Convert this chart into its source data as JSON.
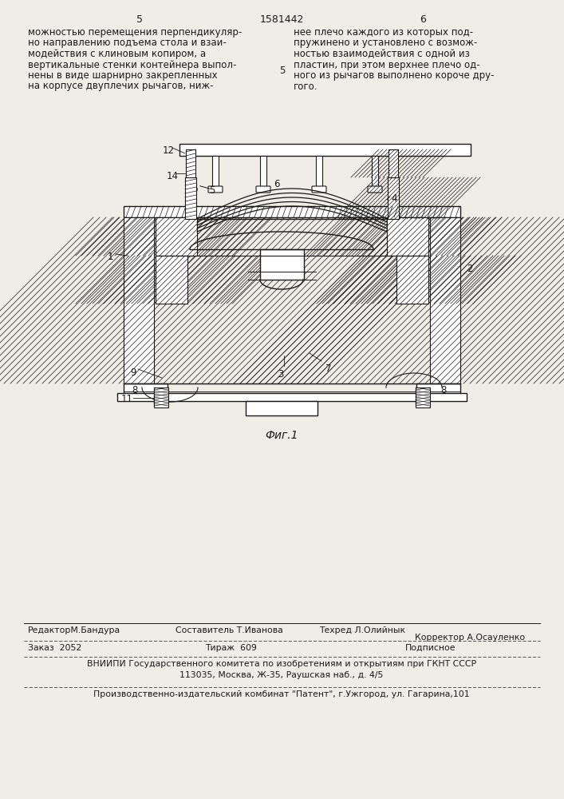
{
  "page_bg": "#f0ede8",
  "text_color": "#1a1a1a",
  "page_number_left": "5",
  "page_number_center": "1581442",
  "page_number_right": "6",
  "col_left_text": [
    "можностью перемещения перпендикуляр-",
    "но направлению подъема стола и взаи-",
    "модействия с клиновым копиром, а",
    "вертикальные стенки контейнера выпол-",
    "нены в виде шарнирно закрепленных",
    "на корпусе двуплечих рычагов, ниж-"
  ],
  "col_right_text": [
    "нее плечо каждого из которых под-",
    "пружинено и установлено с возмож-",
    "ностью взаимодействия с одной из",
    "пластин, при этом верхнее плечо од-",
    "ного из рычагов выполнено короче дру-",
    "гого."
  ],
  "fig_label": "Фиг.1",
  "col_divider_label": "5",
  "bottom_line1_left": "РедакторМ.Бандура",
  "bottom_line1_center1": "Составитель Т.Иванова",
  "bottom_line1_center2": "Техред Л.Олийнык",
  "bottom_line1_right": "Корректор А.Осауленко",
  "bottom_line2_left": "Заказ  2052",
  "bottom_line2_center": "Тираж  609",
  "bottom_line2_right": "Подписное",
  "bottom_line3": "ВНИИПИ Государственного комитета по изобретениям и открытиям при ГКНТ СССР",
  "bottom_line4": "113035, Москва, Ж-35, Раушская наб., д. 4/5",
  "bottom_line5": "Производственно-издательский комбинат \"Патент\", г.Ужгород, ул. Гагарина,101"
}
